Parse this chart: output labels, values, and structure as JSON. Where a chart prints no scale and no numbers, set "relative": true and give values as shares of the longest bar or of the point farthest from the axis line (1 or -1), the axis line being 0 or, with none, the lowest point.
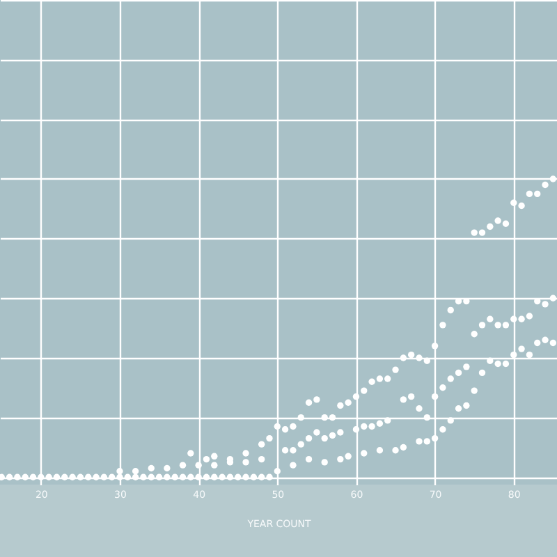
{
  "chart_data": {
    "type": "scatter",
    "relative": true,
    "xlabel": "YEAR COUNT",
    "xlim": [
      14.8,
      85.5
    ],
    "xticks": [
      20,
      30,
      40,
      50,
      60,
      70,
      80
    ],
    "grid": true,
    "marker": "circle",
    "legend": false,
    "series": [
      {
        "color": "#ffffff",
        "x": [
          15,
          16,
          17,
          18,
          19,
          20,
          21,
          22,
          23,
          24,
          25,
          26,
          27,
          28,
          29,
          30,
          31,
          32,
          33,
          34,
          35,
          36,
          37,
          38,
          39,
          40,
          41,
          42,
          43,
          44,
          45,
          46,
          47,
          48,
          49,
          50,
          52,
          54,
          56,
          58,
          59,
          61,
          63,
          65,
          66,
          68,
          69,
          70,
          71,
          72,
          73,
          74,
          75,
          76,
          77,
          78,
          79,
          80,
          81,
          82,
          83,
          84,
          85
        ],
        "values": [
          0,
          0,
          0,
          0,
          0,
          0,
          0,
          0,
          0,
          0,
          0,
          0,
          0,
          0,
          0,
          0,
          0,
          0,
          0,
          0,
          0,
          0,
          0,
          0,
          0,
          0,
          0,
          0,
          0,
          0,
          0,
          0,
          0,
          0,
          0,
          0.02,
          0.04,
          0.06,
          0.05,
          0.06,
          0.07,
          0.08,
          0.09,
          0.09,
          0.1,
          0.12,
          0.12,
          0.13,
          0.16,
          0.19,
          0.23,
          0.24,
          0.29,
          0.35,
          0.39,
          0.38,
          0.38,
          0.41,
          0.43,
          0.41,
          0.45,
          0.46,
          0.45
        ]
      },
      {
        "color": "#ffffff",
        "x": [
          30,
          32,
          34,
          36,
          38,
          40,
          42,
          44,
          46,
          48,
          51,
          52,
          53,
          54,
          55,
          56,
          57,
          58,
          60,
          61,
          62,
          63,
          64,
          66,
          67,
          68,
          69,
          70,
          71,
          72,
          73,
          74
        ],
        "values": [
          0.02,
          0.02,
          0.03,
          0.03,
          0.04,
          0.04,
          0.04,
          0.05,
          0.05,
          0.06,
          0.09,
          0.09,
          0.11,
          0.13,
          0.15,
          0.13,
          0.14,
          0.15,
          0.16,
          0.17,
          0.17,
          0.18,
          0.19,
          0.26,
          0.27,
          0.23,
          0.2,
          0.27,
          0.3,
          0.33,
          0.35,
          0.37
        ]
      },
      {
        "color": "#ffffff",
        "x": [
          39,
          41,
          42,
          44,
          46,
          48,
          49,
          50,
          51,
          52,
          53,
          54,
          55,
          56,
          57,
          58,
          59,
          60,
          61,
          62,
          63,
          64,
          65,
          66,
          67,
          68,
          69,
          70,
          71,
          72,
          73,
          74,
          75,
          76,
          77,
          78,
          79,
          80,
          81,
          82,
          83,
          84,
          85
        ],
        "values": [
          0.08,
          0.06,
          0.07,
          0.06,
          0.08,
          0.11,
          0.13,
          0.17,
          0.16,
          0.17,
          0.2,
          0.25,
          0.26,
          0.2,
          0.2,
          0.24,
          0.25,
          0.27,
          0.29,
          0.32,
          0.33,
          0.33,
          0.36,
          0.4,
          0.41,
          0.4,
          0.39,
          0.44,
          0.51,
          0.56,
          0.59,
          0.59,
          0.48,
          0.51,
          0.53,
          0.51,
          0.51,
          0.53,
          0.53,
          0.54,
          0.59,
          0.58,
          0.6
        ]
      },
      {
        "color": "#ffffff",
        "x": [
          75,
          76,
          77,
          78,
          79,
          80,
          81,
          82,
          83,
          84,
          85
        ],
        "values": [
          0.82,
          0.82,
          0.84,
          0.86,
          0.85,
          0.92,
          0.91,
          0.95,
          0.95,
          0.98,
          1
        ]
      }
    ]
  }
}
